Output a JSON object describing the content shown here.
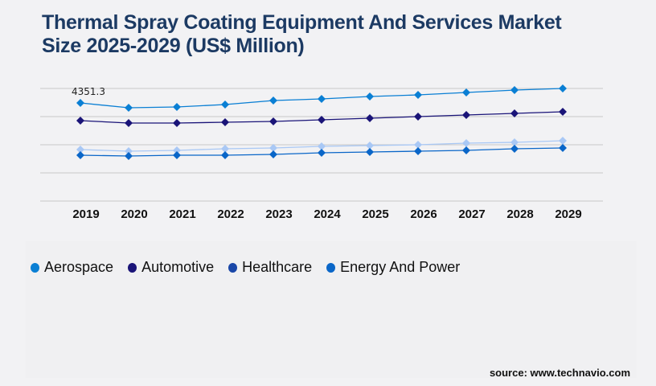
{
  "title": "Thermal Spray Coating Equipment And Services Market Size 2025-2029 (US$ Million)",
  "source": "source: www.technavio.com",
  "chart_data": {
    "type": "line",
    "title": "Thermal Spray Coating Equipment And Services Market Size 2025-2029 (US$ Million)",
    "x": [
      "2019",
      "2020",
      "2021",
      "2022",
      "2023",
      "2024",
      "2025",
      "2026",
      "2027",
      "2028",
      "2029"
    ],
    "ylim": [
      0,
      4994
    ],
    "grid": true,
    "gridlines": 5,
    "legend_position": "bottom-left",
    "annotations": [
      {
        "series": "Aerospace",
        "x": "2019",
        "text": "4351.3"
      }
    ],
    "series": [
      {
        "name": "Aerospace",
        "color": "#0a7fd4",
        "legend_color": "#0a7fd4",
        "values": [
          4351.3,
          4138,
          4173,
          4280,
          4459,
          4530,
          4637,
          4708,
          4815,
          4922,
          4994
        ]
      },
      {
        "name": "Automotive",
        "color": "#1a1478",
        "legend_color": "#1a1478",
        "values": [
          3567,
          3460,
          3460,
          3496,
          3531,
          3603,
          3674,
          3745,
          3817,
          3888,
          3959
        ]
      },
      {
        "name": "Healthcare",
        "color": "#a9c8f5",
        "legend_color": "#1a47a8",
        "values": [
          2283,
          2212,
          2247,
          2319,
          2354,
          2426,
          2461,
          2497,
          2568,
          2604,
          2675
        ]
      },
      {
        "name": "Energy And Power",
        "color": "#0a66c8",
        "legend_color": "#0a66c8",
        "values": [
          2033,
          1998,
          2033,
          2033,
          2069,
          2140,
          2176,
          2212,
          2247,
          2319,
          2354
        ]
      }
    ]
  }
}
